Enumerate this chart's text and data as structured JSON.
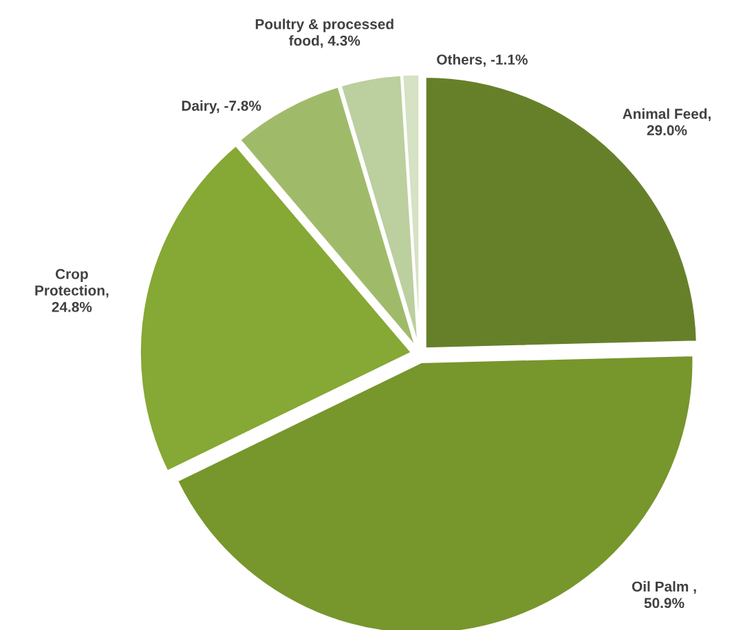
{
  "chart_data": {
    "type": "pie",
    "categories": [
      "Animal Feed",
      "Oil Palm ",
      "Crop Protection",
      "Dairy",
      "Poultry & processed food",
      "Others"
    ],
    "values": [
      24.6,
      43.2,
      21.0,
      6.6,
      3.6,
      1.0
    ],
    "annotations": [
      ", 29.0%",
      ", 50.9%",
      ", 24.8%",
      ", -7.8%",
      ", 4.3%",
      ", -1.1%"
    ],
    "colors": [
      "#66802a",
      "#77962c",
      "#86a834",
      "#9fbb6a",
      "#bccf9e",
      "#d5e2c4"
    ],
    "legend": false
  }
}
